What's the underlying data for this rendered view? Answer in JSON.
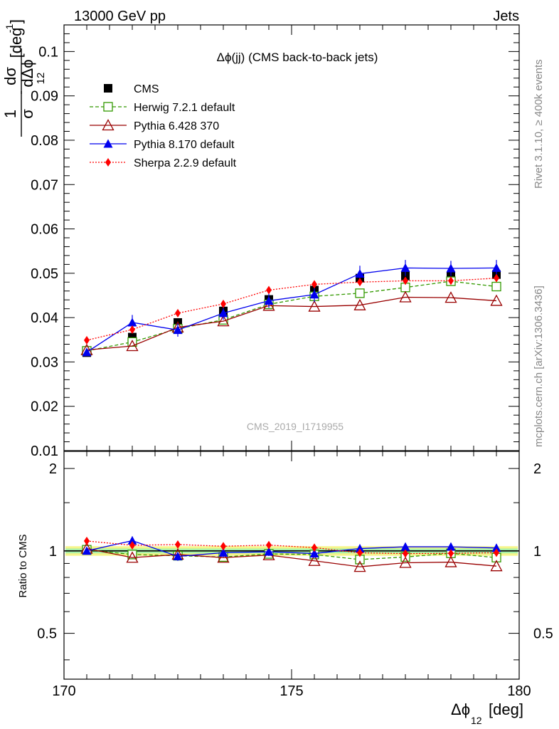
{
  "header": {
    "energy": "13000 GeV pp",
    "process": "Jets"
  },
  "side": {
    "rivet": "Rivet 3.1.10, ≥ 400k events",
    "mcplots": "mcplots.cern.ch [arXiv:1306.3436]"
  },
  "chart_data": {
    "type": "line",
    "title": "Δϕ(jj) (CMS back-to-back jets)",
    "analysis": "CMS_2019_I1719955",
    "xlabel": "Δϕ",
    "xlabel_sub": "12",
    "xlabel_unit": "[deg]",
    "ylabel": "1/σ dσ/dΔϕ₁₂ [deg⁻¹]",
    "ylabel_parts": {
      "one": "1",
      "dsigma": "dσ",
      "sigma": "σ",
      "dphi": "dΔϕ",
      "sub": "12",
      "unit": "[deg",
      "exp": "-1",
      "close": "]"
    },
    "ratio_ylabel": "Ratio to CMS",
    "xlim": [
      170,
      180
    ],
    "ylim": [
      0.01,
      0.106
    ],
    "ratio_ylim": [
      0.34,
      2.31
    ],
    "x_ticks": [
      "170",
      "175",
      "180"
    ],
    "y_ticks": [
      "0.01",
      "0.02",
      "0.03",
      "0.04",
      "0.05",
      "0.06",
      "0.07",
      "0.08",
      "0.09",
      "0.1"
    ],
    "ratio_ticks": [
      "0.5",
      "1",
      "2"
    ],
    "x": [
      170.5,
      171.5,
      172.5,
      173.5,
      174.5,
      175.5,
      176.5,
      177.5,
      178.5,
      179.5
    ],
    "data": {
      "name": "CMS",
      "values": [
        0.0321,
        0.0356,
        0.0389,
        0.0415,
        0.0441,
        0.0462,
        0.0489,
        0.0494,
        0.0494,
        0.0497
      ],
      "errors": [
        0.0009,
        0.0009,
        0.0009,
        0.0009,
        0.0009,
        0.0009,
        0.0009,
        0.0009,
        0.0009,
        0.0009
      ]
    },
    "series": [
      {
        "name": "Herwig 7.2.1 default",
        "color": "#339900",
        "dash": "5,3",
        "marker": "open-square",
        "values": [
          0.0325,
          0.0345,
          0.0375,
          0.0395,
          0.043,
          0.0448,
          0.0455,
          0.0468,
          0.0482,
          0.047
        ],
        "errors": [
          0,
          0,
          0,
          0,
          0,
          0,
          0,
          0,
          0,
          0
        ]
      },
      {
        "name": "Pythia 6.428 370",
        "color": "#990000",
        "dash": "",
        "marker": "open-triangle",
        "values": [
          0.0327,
          0.0336,
          0.0378,
          0.0392,
          0.0427,
          0.0425,
          0.0428,
          0.0446,
          0.0445,
          0.0438
        ],
        "errors": [
          0,
          0,
          0,
          0,
          0,
          0,
          0,
          0,
          0,
          0
        ]
      },
      {
        "name": "Pythia 8.170 default",
        "color": "#0000ee",
        "dash": "",
        "marker": "filled-triangle",
        "values": [
          0.0322,
          0.0389,
          0.0372,
          0.041,
          0.0438,
          0.0452,
          0.0499,
          0.0512,
          0.0511,
          0.0512
        ],
        "errors": [
          0.0005,
          0.0017,
          0.0015,
          0.0015,
          0.0016,
          0.0017,
          0.0018,
          0.0018,
          0.0017,
          0.0018
        ]
      },
      {
        "name": "Sherpa 2.2.9 default",
        "color": "#ff0000",
        "dash": "2,2",
        "marker": "diamond",
        "values": [
          0.0349,
          0.0373,
          0.041,
          0.0431,
          0.0462,
          0.0475,
          0.048,
          0.0483,
          0.0483,
          0.0489
        ],
        "errors": [
          0,
          0,
          0,
          0,
          0,
          0,
          0,
          0,
          0,
          0
        ]
      }
    ],
    "ratio": {
      "band_inner": 0.02,
      "band_outer": 0.04,
      "series": [
        {
          "name": "Herwig 7.2.1 default",
          "values": [
            1.01,
            0.97,
            0.96,
            0.95,
            0.975,
            0.97,
            0.93,
            0.95,
            0.98,
            0.945
          ]
        },
        {
          "name": "Pythia 6.428 370",
          "values": [
            1.02,
            0.945,
            0.97,
            0.945,
            0.965,
            0.92,
            0.875,
            0.905,
            0.91,
            0.88
          ]
        },
        {
          "name": "Pythia 8.170 default",
          "values": [
            1.0,
            1.09,
            0.955,
            0.985,
            0.993,
            0.978,
            1.02,
            1.035,
            1.035,
            1.025
          ],
          "errors": [
            0.02,
            0.04,
            0.035,
            0.035,
            0.035,
            0.035,
            0.035,
            0.035,
            0.035,
            0.035
          ]
        },
        {
          "name": "Sherpa 2.2.9 default",
          "values": [
            1.087,
            1.048,
            1.055,
            1.04,
            1.05,
            1.028,
            0.984,
            0.978,
            0.98,
            0.985
          ]
        }
      ]
    }
  }
}
